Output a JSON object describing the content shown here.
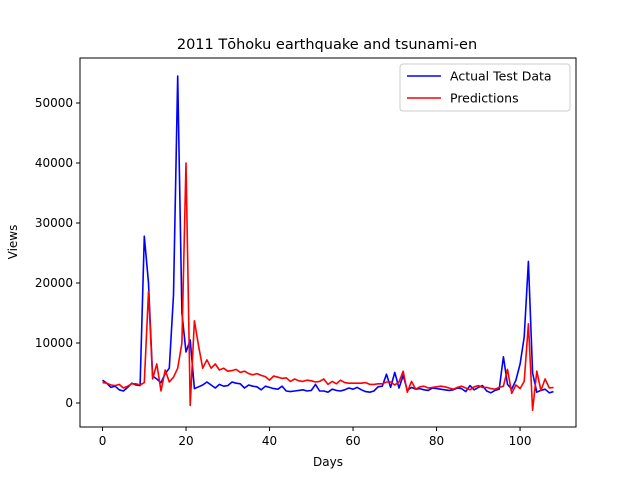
{
  "chart_data": {
    "type": "line",
    "title": "2011 Tōhoku earthquake and tsunami-en",
    "xlabel": "Days",
    "ylabel": "Views",
    "xlim": [
      -5.4,
      113.4
    ],
    "ylim": [
      -4000,
      57500
    ],
    "xticks": [
      0,
      20,
      40,
      60,
      80,
      100
    ],
    "yticks": [
      0,
      10000,
      20000,
      30000,
      40000,
      50000
    ],
    "legend_position": "top-right",
    "grid": false,
    "series": [
      {
        "name": "Actual Test Data",
        "color": "#0000ff",
        "x": [
          0,
          1,
          2,
          3,
          4,
          5,
          6,
          7,
          8,
          9,
          10,
          11,
          12,
          13,
          14,
          15,
          16,
          17,
          18,
          19,
          20,
          21,
          22,
          23,
          24,
          25,
          26,
          27,
          28,
          29,
          30,
          31,
          32,
          33,
          34,
          35,
          36,
          37,
          38,
          39,
          40,
          41,
          42,
          43,
          44,
          45,
          46,
          47,
          48,
          49,
          50,
          51,
          52,
          53,
          54,
          55,
          56,
          57,
          58,
          59,
          60,
          61,
          62,
          63,
          64,
          65,
          66,
          67,
          68,
          69,
          70,
          71,
          72,
          73,
          74,
          75,
          76,
          77,
          78,
          79,
          80,
          81,
          82,
          83,
          84,
          85,
          86,
          87,
          88,
          89,
          90,
          91,
          92,
          93,
          94,
          95,
          96,
          97,
          98,
          99,
          100,
          101,
          102,
          103,
          104,
          105,
          106,
          107,
          108
        ],
        "values": [
          3800,
          3300,
          2600,
          2800,
          2200,
          2000,
          2600,
          3300,
          3000,
          2900,
          27800,
          20000,
          4500,
          4000,
          3400,
          4900,
          5800,
          18000,
          54500,
          15000,
          8500,
          10500,
          2400,
          2700,
          3000,
          3500,
          3000,
          2500,
          3100,
          2800,
          2900,
          3500,
          3300,
          3200,
          2500,
          3000,
          2800,
          2700,
          2200,
          2800,
          2600,
          2400,
          2300,
          2800,
          2000,
          1900,
          2000,
          2100,
          2200,
          2000,
          2100,
          3100,
          2000,
          2000,
          1800,
          2300,
          2100,
          2000,
          2200,
          2500,
          2300,
          2600,
          2200,
          1900,
          1800,
          2000,
          2700,
          2800,
          4800,
          2600,
          5100,
          2500,
          4600,
          2100,
          2600,
          2300,
          2400,
          2200,
          2100,
          2500,
          2400,
          2300,
          2200,
          2100,
          2200,
          2500,
          2400,
          1900,
          2900,
          2200,
          2600,
          2900,
          2000,
          1700,
          2100,
          2300,
          7700,
          3100,
          2300,
          3800,
          6500,
          11000,
          23600,
          5000,
          1800,
          2100,
          2300,
          1700,
          1900
        ]
      },
      {
        "name": "Predictions",
        "color": "#ff0000",
        "x": [
          0,
          1,
          2,
          3,
          4,
          5,
          6,
          7,
          8,
          9,
          10,
          11,
          12,
          13,
          14,
          15,
          16,
          17,
          18,
          19,
          20,
          21,
          22,
          23,
          24,
          25,
          26,
          27,
          28,
          29,
          30,
          31,
          32,
          33,
          34,
          35,
          36,
          37,
          38,
          39,
          40,
          41,
          42,
          43,
          44,
          45,
          46,
          47,
          48,
          49,
          50,
          51,
          52,
          53,
          54,
          55,
          56,
          57,
          58,
          59,
          60,
          61,
          62,
          63,
          64,
          65,
          66,
          67,
          68,
          69,
          70,
          71,
          72,
          73,
          74,
          75,
          76,
          77,
          78,
          79,
          80,
          81,
          82,
          83,
          84,
          85,
          86,
          87,
          88,
          89,
          90,
          91,
          92,
          93,
          94,
          95,
          96,
          97,
          98,
          99,
          100,
          101,
          102,
          103,
          104,
          105,
          106,
          107,
          108
        ],
        "values": [
          3400,
          3300,
          3000,
          2900,
          3100,
          2500,
          2800,
          3200,
          3200,
          3000,
          3400,
          18600,
          4000,
          6500,
          2000,
          5500,
          3500,
          4300,
          5800,
          10000,
          40000,
          -400,
          13700,
          9500,
          5800,
          7200,
          5800,
          6500,
          5500,
          5800,
          5300,
          5400,
          5600,
          5100,
          5300,
          4900,
          4700,
          4900,
          4600,
          4400,
          3800,
          4500,
          4300,
          4100,
          4200,
          3600,
          4000,
          3700,
          3600,
          3800,
          3700,
          3500,
          3600,
          4000,
          3100,
          3600,
          3200,
          3800,
          3400,
          3300,
          3300,
          3300,
          3300,
          3400,
          3100,
          3100,
          3200,
          3200,
          3500,
          3500,
          3000,
          3500,
          5300,
          1800,
          3600,
          2300,
          2700,
          2800,
          2500,
          2600,
          2700,
          2800,
          2700,
          2500,
          2300,
          2600,
          2800,
          2500,
          2200,
          2700,
          2900,
          2600,
          2600,
          2400,
          2300,
          2600,
          2800,
          5600,
          1600,
          3000,
          2400,
          3600,
          13200,
          -1200,
          5300,
          2100,
          4000,
          2500,
          2600
        ]
      }
    ]
  }
}
